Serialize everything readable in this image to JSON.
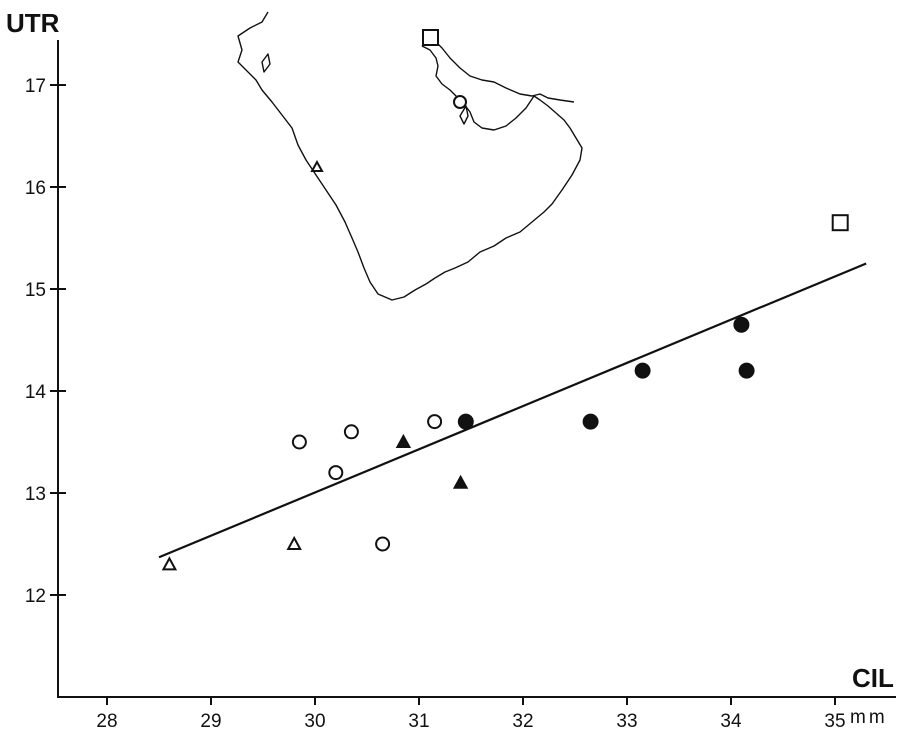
{
  "chart_data": {
    "type": "scatter",
    "xlabel": "CIL",
    "ylabel": "UTR",
    "xunit": "mm",
    "xlim": [
      27.5,
      35.6
    ],
    "ylim": [
      11.0,
      17.7
    ],
    "xticks": [
      28,
      29,
      30,
      31,
      32,
      33,
      34,
      35
    ],
    "yticks": [
      12,
      13,
      14,
      15,
      16,
      17
    ],
    "grid": false,
    "series": [
      {
        "marker": "open-triangle",
        "points": [
          [
            28.6,
            12.3
          ],
          [
            29.8,
            12.5
          ]
        ]
      },
      {
        "marker": "filled-triangle",
        "points": [
          [
            30.85,
            13.5
          ],
          [
            31.4,
            13.1
          ]
        ]
      },
      {
        "marker": "open-circle",
        "points": [
          [
            29.85,
            13.5
          ],
          [
            30.2,
            13.2
          ],
          [
            30.35,
            13.6
          ],
          [
            30.65,
            12.5
          ],
          [
            31.15,
            13.7
          ]
        ]
      },
      {
        "marker": "filled-circle",
        "points": [
          [
            31.45,
            13.7
          ],
          [
            32.65,
            13.7
          ],
          [
            33.15,
            14.2
          ],
          [
            34.1,
            14.65
          ],
          [
            34.15,
            14.2
          ]
        ]
      },
      {
        "marker": "open-square",
        "points": [
          [
            35.05,
            15.65
          ]
        ]
      }
    ],
    "regression_line": {
      "from": [
        28.5,
        12.37
      ],
      "to": [
        35.3,
        15.25
      ]
    },
    "inset_map": {
      "content": "Arabian Peninsula outline",
      "markers": [
        "open-triangle",
        "open-circle",
        "open-square"
      ]
    }
  }
}
